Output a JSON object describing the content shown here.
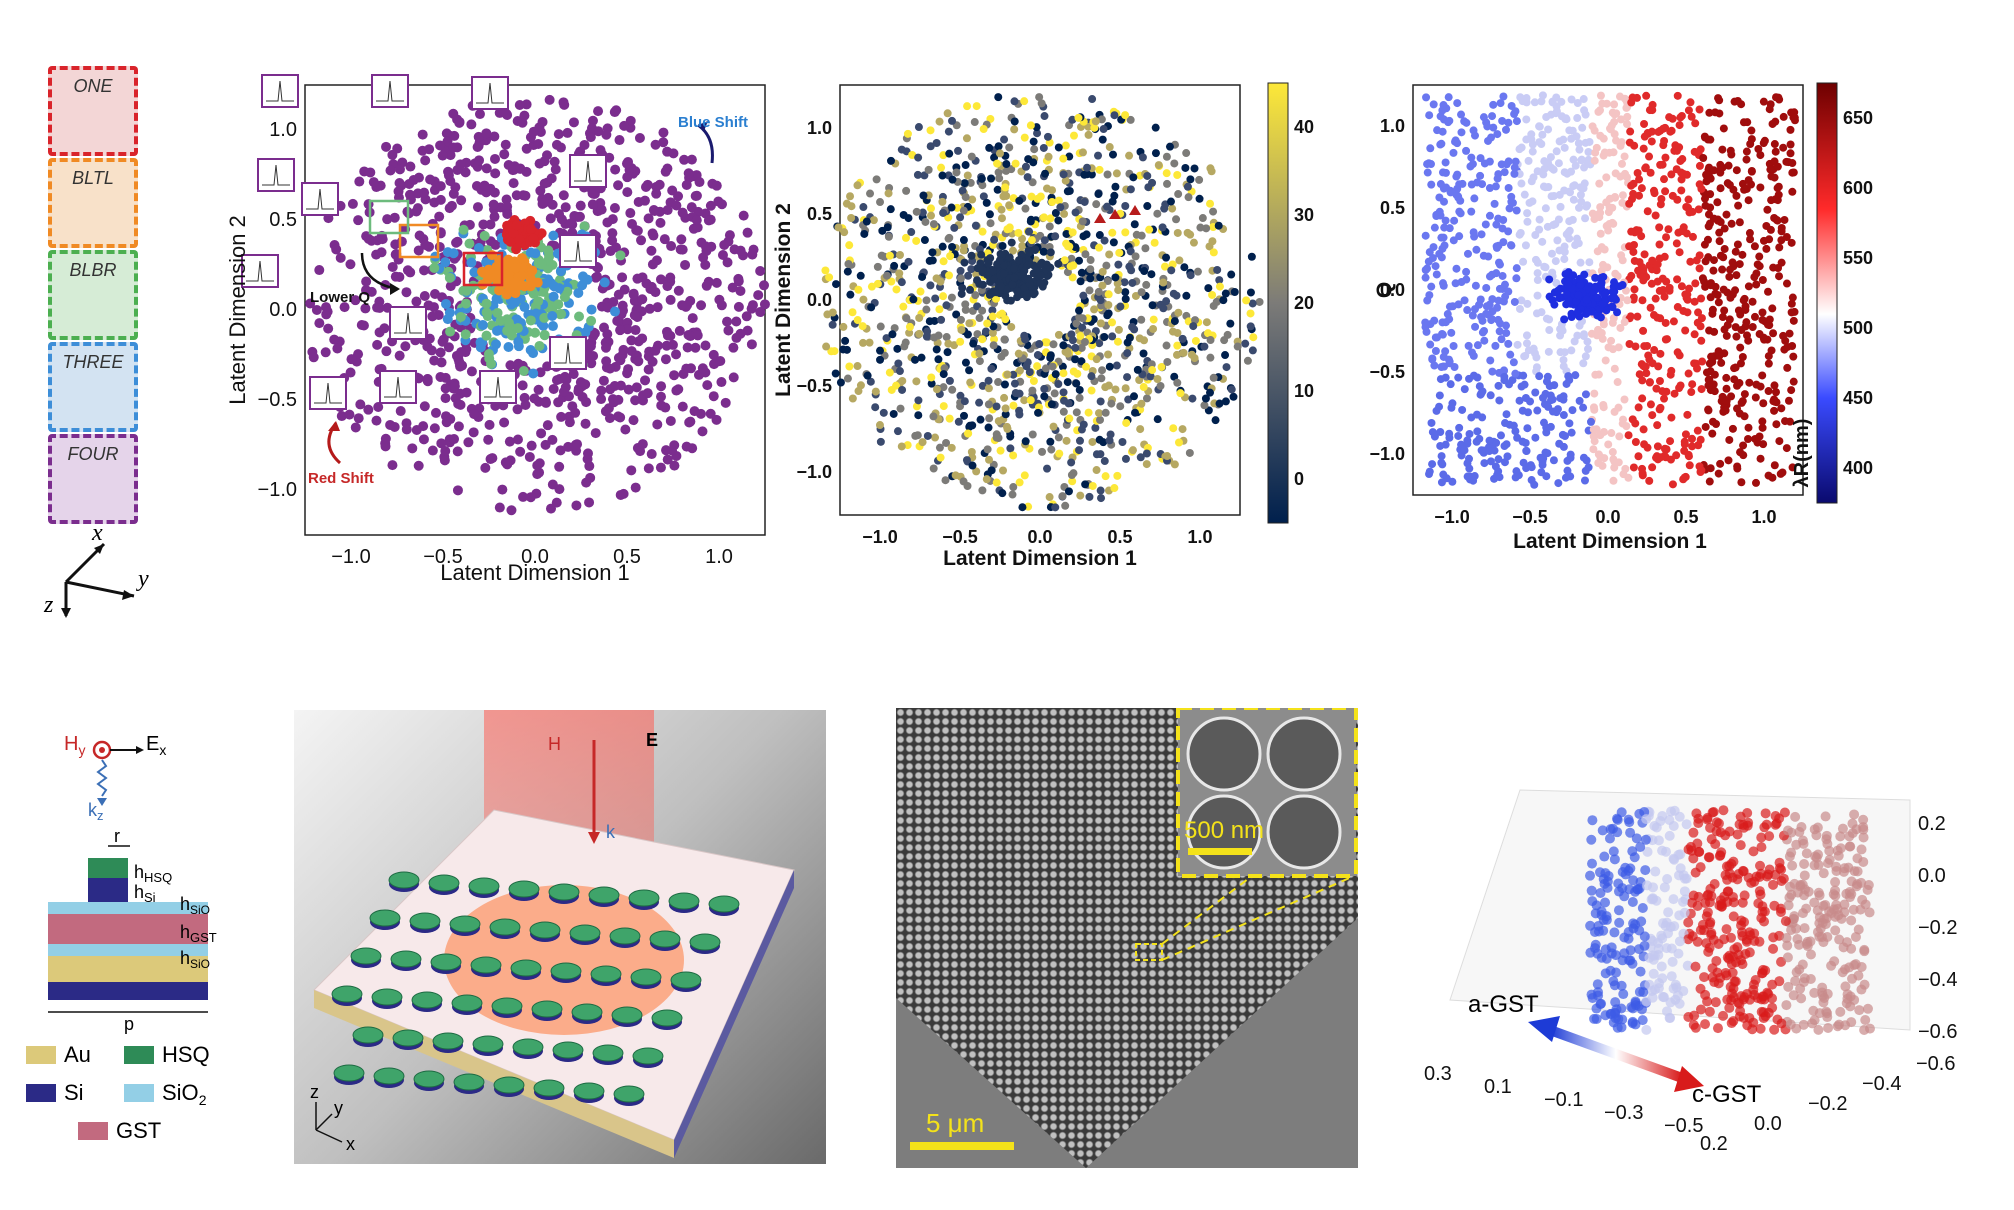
{
  "configs": [
    {
      "label": "ONE",
      "color": "#d9242b",
      "fill": "#f3d6d6"
    },
    {
      "label": "BLTL",
      "color": "#f08a24",
      "fill": "#f8e1c9"
    },
    {
      "label": "BLBR",
      "color": "#4caf50",
      "fill": "#d6ecd6"
    },
    {
      "label": "THREE",
      "color": "#3d8ed8",
      "fill": "#d3e3f2"
    },
    {
      "label": "FOUR",
      "color": "#7b2d8e",
      "fill": "#e5d4ea"
    }
  ],
  "axes_icon": {
    "x": "x",
    "y": "y",
    "z": "z"
  },
  "chart_data": [
    {
      "type": "scatter",
      "xlabel": "Latent Dimension 1",
      "ylabel": "Latent Dimension 2",
      "xlim": [
        -1.5,
        1.5
      ],
      "ylim": [
        -1.35,
        1.5
      ],
      "xticks": [
        "−1.0",
        "−0.5",
        "0.0",
        "0.5",
        "1.0"
      ],
      "yticks": [
        "1.0",
        "0.5",
        "0.0",
        "−0.5",
        "−1.0"
      ],
      "series": [
        {
          "name": "FOUR",
          "color": "#7b2d8e"
        },
        {
          "name": "THREE",
          "color": "#3d8ed8"
        },
        {
          "name": "BLBR",
          "color": "#6dbb7d"
        },
        {
          "name": "BLTL",
          "color": "#f08a24"
        },
        {
          "name": "ONE",
          "color": "#d9242b"
        }
      ],
      "annotations": {
        "blue_shift": "Blue Shift",
        "red_shift": "Red Shift",
        "lower_q": "Lower Q"
      }
    },
    {
      "type": "scatter",
      "xlabel": "Latent Dimension 1",
      "ylabel": "Latent Dimension 2",
      "xlim": [
        -1.1,
        1.1
      ],
      "ylim": [
        -1.1,
        1.1
      ],
      "xticks": [
        "−1.0",
        "−0.5",
        "0.0",
        "0.5",
        "1.0"
      ],
      "yticks": [
        "1.0",
        "0.5",
        "0.0",
        "−0.5",
        "−1.0"
      ],
      "colorbar": {
        "min": 0,
        "max": 48,
        "ticks": [
          "40",
          "30",
          "20",
          "10",
          "0"
        ],
        "colors": [
          "#00204d",
          "#7c7b78",
          "#fde838"
        ]
      }
    },
    {
      "type": "scatter",
      "xlabel": "Latent Dimension 1",
      "ylabel": "Q",
      "xlim": [
        -1.1,
        1.1
      ],
      "ylim": [
        -1.1,
        1.1
      ],
      "xticks": [
        "−1.0",
        "−0.5",
        "0.0",
        "0.5",
        "1.0"
      ],
      "yticks": [
        "1.0",
        "0.5",
        "0.0",
        "−0.5",
        "−1.0"
      ],
      "colorbar": {
        "min": 370,
        "max": 680,
        "label": "λR(nm)",
        "ticks": [
          "650",
          "600",
          "550",
          "500",
          "450",
          "400"
        ],
        "colors": [
          "#0a0a6e",
          "#3a4bff",
          "#ffffff",
          "#ff2a2a",
          "#6e0000"
        ]
      }
    },
    {
      "type": "scatter",
      "dimensions": 3,
      "zticks": [
        "0.2",
        "0.0",
        "−0.2",
        "−0.4",
        "−0.6"
      ],
      "xticks": [
        "0.3",
        "0.1",
        "−0.1",
        "−0.3",
        "−0.5"
      ],
      "yticks": [
        "0.2",
        "0.0",
        "−0.2",
        "−0.4",
        "−0.6"
      ],
      "annotations": {
        "left": "a-GST",
        "right": "c-GST"
      }
    }
  ],
  "stack": {
    "hy": "H",
    "hy_sub": "y",
    "ex": "E",
    "ex_sub": "x",
    "kz": "k",
    "kz_sub": "z",
    "r": "r",
    "h_hsq": "h",
    "h_hsq_sub": "HSQ",
    "h_si": "h",
    "h_si_sub": "Si",
    "h_sio2_top": "h",
    "h_sio2_top_sub": "SiO",
    "h_gst": "h",
    "h_gst_sub": "GST",
    "h_sio2_bot": "h",
    "h_sio2_bot_sub": "SiO",
    "p": "p",
    "legend": [
      {
        "label": "Au",
        "color": "#dcc97a"
      },
      {
        "label": "HSQ",
        "color": "#2e8b57"
      },
      {
        "label": "Si",
        "color": "#2b2a86"
      },
      {
        "label": "SiO",
        "sub": "2",
        "color": "#93cfe6"
      },
      {
        "label": "GST",
        "color": "#c26a7f"
      }
    ]
  },
  "render": {
    "H": "H",
    "E": "E",
    "k": "k",
    "axis_x": "x",
    "axis_y": "y",
    "axis_z": "z"
  },
  "sem": {
    "inset_scale": "500 nm",
    "scale": "5 μm"
  }
}
